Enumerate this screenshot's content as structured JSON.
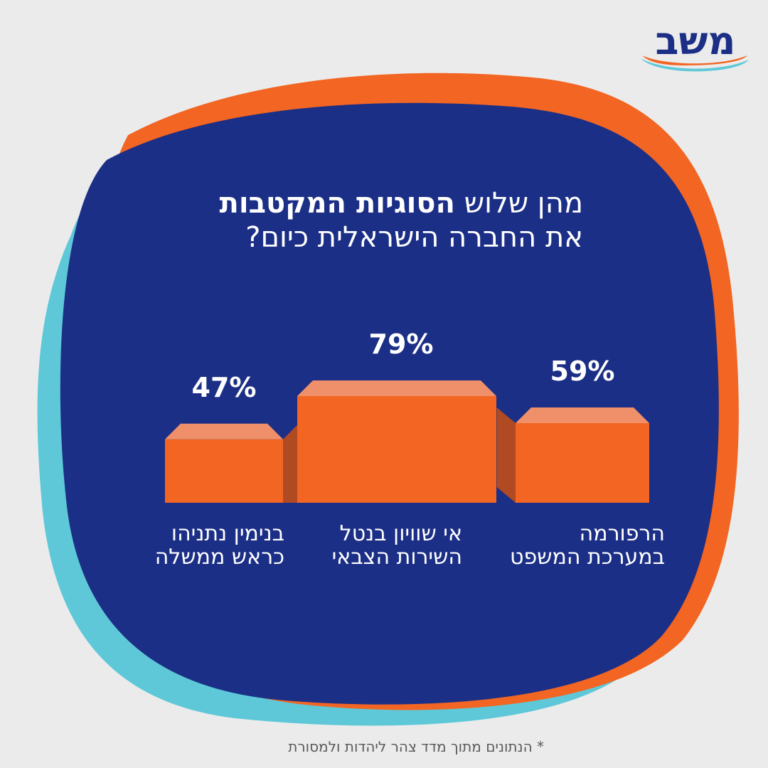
{
  "title": {
    "line1_regular": "מהן שלוש",
    "line1_bold": "הסוגיות המקטבות",
    "line2": "את החברה הישראלית כיום?"
  },
  "chart_data": {
    "type": "bar",
    "categories": [
      "בנימין נתניהו כראש ממשלה",
      "אי שוויון בנטל השירות הצבאי",
      "הרפורמה במערכת המשפט"
    ],
    "values": [
      47,
      79,
      59
    ],
    "value_labels": [
      "47%",
      "79%",
      "59%"
    ],
    "category_lines": [
      [
        "בנימין נתניהו",
        "כראש ממשלה"
      ],
      [
        "אי שוויון בנטל",
        "השירות הצבאי"
      ],
      [
        "הרפורמה",
        "במערכת המשפט"
      ]
    ],
    "unit": "%"
  },
  "footnote": "* הנתונים מתוך מדד צהר ליהדות ולמסורת",
  "logo": "משב",
  "colors": {
    "background": "#ebebeb",
    "blob_blue": "#1c2f86",
    "blob_orange": "#f26522",
    "blob_teal": "#5ec8d8",
    "bar_front": "#f26522",
    "bar_top": "#f0906a",
    "bar_side": "#b04a22",
    "text": "#ffffff"
  }
}
